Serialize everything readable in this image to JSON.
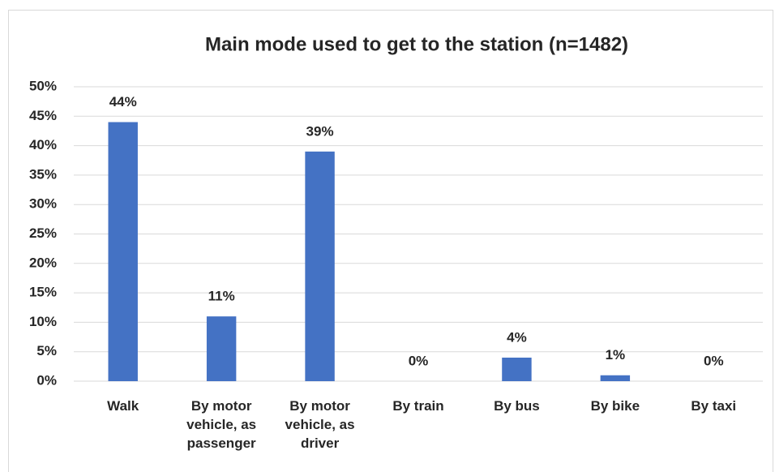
{
  "chart_data": {
    "type": "bar",
    "title": "Main mode used to get to the station (n=1482)",
    "categories": [
      "Walk",
      "By motor vehicle, as passenger",
      "By motor vehicle, as driver",
      "By train",
      "By bus",
      "By bike",
      "By taxi"
    ],
    "values": [
      44,
      11,
      39,
      0,
      4,
      1,
      0
    ],
    "value_labels": [
      "44%",
      "11%",
      "39%",
      "0%",
      "4%",
      "1%",
      "0%"
    ],
    "color": "#4472c4",
    "ylim": [
      0,
      50
    ],
    "yticks": [
      {
        "value": 0,
        "label": "0%"
      },
      {
        "value": 5,
        "label": "5%"
      },
      {
        "value": 10,
        "label": "10%"
      },
      {
        "value": 15,
        "label": "15%"
      },
      {
        "value": 20,
        "label": "20%"
      },
      {
        "value": 25,
        "label": "25%"
      },
      {
        "value": 30,
        "label": "30%"
      },
      {
        "value": 35,
        "label": "35%"
      },
      {
        "value": 40,
        "label": "40%"
      },
      {
        "value": 45,
        "label": "45%"
      },
      {
        "value": 50,
        "label": "50%"
      }
    ],
    "grid": true
  }
}
